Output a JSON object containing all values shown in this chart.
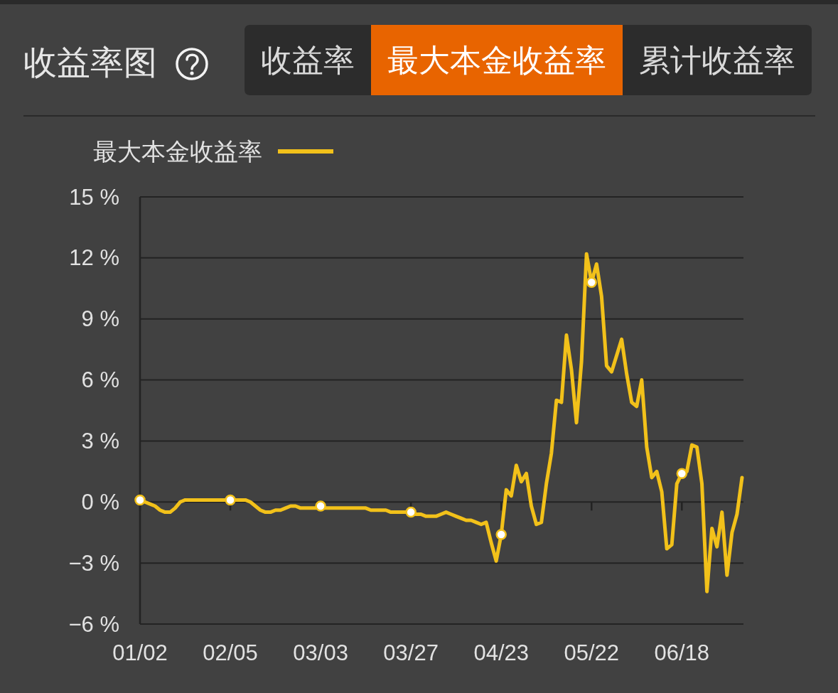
{
  "chart_data": {
    "type": "line",
    "title": "收益率图",
    "annotations": [
      "收益率",
      "最大本金收益率",
      "累计收益率"
    ],
    "categories": [
      "01/02",
      null,
      null,
      null,
      null,
      null,
      null,
      null,
      null,
      null,
      null,
      null,
      null,
      null,
      null,
      null,
      null,
      null,
      "02/05",
      null,
      null,
      null,
      null,
      null,
      null,
      null,
      null,
      null,
      null,
      null,
      null,
      null,
      null,
      null,
      null,
      null,
      "03/03",
      null,
      null,
      null,
      null,
      null,
      null,
      null,
      null,
      null,
      null,
      null,
      null,
      null,
      null,
      null,
      null,
      null,
      "03/27",
      null,
      null,
      null,
      null,
      null,
      null,
      null,
      null,
      null,
      null,
      null,
      null,
      null,
      null,
      null,
      null,
      null,
      "04/23",
      null,
      null,
      null,
      null,
      null,
      null,
      null,
      null,
      null,
      null,
      null,
      null,
      null,
      null,
      null,
      null,
      null,
      "05/22",
      null,
      null,
      null,
      null,
      null,
      null,
      null,
      null,
      null,
      null,
      null,
      null,
      null,
      null,
      null,
      null,
      null,
      "06/18",
      null,
      null,
      null,
      null,
      null,
      null,
      null,
      null,
      null,
      null,
      null,
      null
    ],
    "series": [
      {
        "name": "最大本金收益率",
        "color": "#f2c11a",
        "values": [
          0.1,
          0,
          -0.1,
          -0.2,
          -0.4,
          -0.5,
          -0.5,
          -0.3,
          0,
          0.1,
          0.1,
          0.1,
          0.1,
          0.1,
          0.1,
          0.1,
          0.1,
          0.1,
          0.1,
          0.1,
          0.1,
          0.1,
          0,
          -0.2,
          -0.4,
          -0.5,
          -0.5,
          -0.4,
          -0.4,
          -0.3,
          -0.2,
          -0.2,
          -0.3,
          -0.3,
          -0.3,
          -0.3,
          -0.2,
          -0.3,
          -0.3,
          -0.3,
          -0.3,
          -0.3,
          -0.3,
          -0.3,
          -0.3,
          -0.3,
          -0.4,
          -0.4,
          -0.4,
          -0.4,
          -0.5,
          -0.5,
          -0.5,
          -0.5,
          -0.5,
          -0.6,
          -0.6,
          -0.7,
          -0.7,
          -0.7,
          -0.6,
          -0.5,
          -0.6,
          -0.7,
          -0.8,
          -0.9,
          -0.9,
          -1.0,
          -1.1,
          -1.0,
          -2.0,
          -2.9,
          -1.6,
          0.6,
          0.3,
          1.8,
          1.0,
          1.4,
          -0.2,
          -1.1,
          -1.0,
          0.9,
          2.4,
          5.0,
          4.9,
          8.2,
          6.5,
          3.9,
          6.9,
          12.2,
          10.8,
          11.7,
          10.1,
          6.7,
          6.4,
          7.2,
          8.0,
          6.3,
          4.9,
          4.7,
          6.0,
          2.7,
          1.2,
          1.5,
          0.5,
          -2.3,
          -2.1,
          0.9,
          1.4,
          1.5,
          2.8,
          2.7,
          0.9,
          -4.4,
          -1.3,
          -2.2,
          -0.5,
          -3.6,
          -1.5,
          -0.6,
          1.2
        ]
      },
      {
        "type": "scatter",
        "color": "#f2c11a",
        "marker": "circle",
        "x": [
          "01/02",
          "02/05",
          "03/03",
          "03/27",
          "04/23",
          "05/22",
          "06/18"
        ],
        "values": [
          0.1,
          0.1,
          -0.2,
          -0.5,
          -1.6,
          10.8,
          1.4
        ]
      }
    ],
    "ylim": [
      -6,
      15
    ],
    "yticks": [
      {
        "value": -6,
        "label": "−6 %"
      },
      {
        "value": -3,
        "label": "−3 %"
      },
      {
        "value": 0,
        "label": "0 %"
      },
      {
        "value": 3,
        "label": "3 %"
      },
      {
        "value": 6,
        "label": "6 %"
      },
      {
        "value": 9,
        "label": "9 %"
      },
      {
        "value": 12,
        "label": "12 %"
      },
      {
        "value": 15,
        "label": "15 %"
      }
    ],
    "grid": "y",
    "legend": "top left",
    "line_style": "solid"
  }
}
